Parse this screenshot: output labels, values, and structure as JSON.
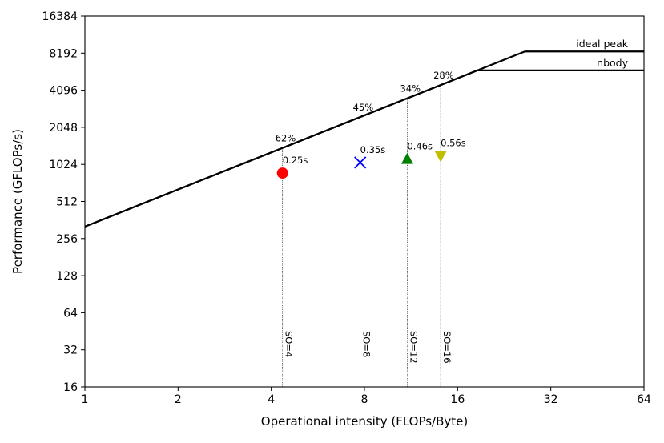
{
  "chart_data": {
    "type": "scatter",
    "xlabel": "Operational intensity (FLOPs/Byte)",
    "ylabel": "Performance (GFLOPs/s)",
    "xscale": "log2",
    "yscale": "log2",
    "xlim": [
      1,
      64
    ],
    "ylim": [
      16,
      16384
    ],
    "xticks": [
      1,
      2,
      4,
      8,
      16,
      32,
      64
    ],
    "yticks": [
      16,
      32,
      64,
      128,
      256,
      512,
      1024,
      2048,
      4096,
      8192,
      16384
    ],
    "xtick_labels": [
      "1",
      "2",
      "4",
      "8",
      "16",
      "32",
      "64"
    ],
    "ytick_labels": [
      "16",
      "32",
      "64",
      "128",
      "256",
      "512",
      "1024",
      "2048",
      "4096",
      "8192",
      "16384"
    ],
    "roofline_slope": 320,
    "roofs": [
      {
        "name": "ideal peak",
        "value": 8450
      },
      {
        "name": "nbody",
        "value": 5930
      }
    ],
    "markers": [
      {
        "x": 4.35,
        "y": 870,
        "marker": "circle",
        "color": "#ff0000",
        "time_label": "0.25s",
        "efficiency_label": "62%",
        "so_label": "SO=4"
      },
      {
        "x": 7.75,
        "y": 1060,
        "marker": "x",
        "color": "#0000ff",
        "time_label": "0.35s",
        "efficiency_label": "45%",
        "so_label": "SO=8"
      },
      {
        "x": 11.0,
        "y": 1130,
        "marker": "triangle-up",
        "color": "#008000",
        "time_label": "0.46s",
        "efficiency_label": "34%",
        "so_label": "SO=12"
      },
      {
        "x": 14.1,
        "y": 1200,
        "marker": "triangle-down",
        "color": "#bfbf00",
        "time_label": "0.56s",
        "efficiency_label": "28%",
        "so_label": "SO=16"
      }
    ]
  }
}
